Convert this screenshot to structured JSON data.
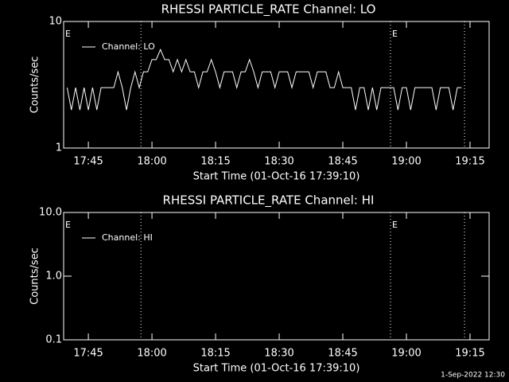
{
  "chart_data": [
    {
      "type": "line",
      "title": "RHESSI PARTICLE_RATE Channel: LO",
      "x_label": "Start Time (01-Oct-16 17:39:10)",
      "y_label": "Counts/sec",
      "log_y": true,
      "ylim": [
        1,
        10
      ],
      "yticks": [
        1,
        10
      ],
      "xlim": [
        39.17,
        139.5
      ],
      "xticks": [
        {
          "value": 45,
          "label": "17:45"
        },
        {
          "value": 60,
          "label": "18:00"
        },
        {
          "value": 75,
          "label": "18:15"
        },
        {
          "value": 90,
          "label": "18:30"
        },
        {
          "value": 105,
          "label": "18:45"
        },
        {
          "value": 120,
          "label": "19:00"
        },
        {
          "value": 135,
          "label": "19:15"
        }
      ],
      "vlines": [
        57.4,
        116.25,
        133.7
      ],
      "annotations": [
        {
          "text": "E",
          "x": 39.17
        },
        {
          "text": "E",
          "x": 116.25
        }
      ],
      "legend": "upper left",
      "series": [
        {
          "name": "Channel: LO",
          "color": "#ffffff",
          "x": [
            40,
            41,
            42,
            43,
            44,
            45,
            46,
            47,
            48,
            49,
            50,
            51,
            52,
            53,
            54,
            55,
            56,
            57,
            58,
            59,
            60,
            61,
            62,
            63,
            64,
            65,
            66,
            67,
            68,
            69,
            70,
            71,
            72,
            73,
            74,
            75,
            76,
            77,
            78,
            79,
            80,
            81,
            82,
            83,
            84,
            85,
            86,
            87,
            88,
            89,
            90,
            91,
            92,
            93,
            94,
            95,
            96,
            97,
            98,
            99,
            100,
            101,
            102,
            103,
            104,
            105,
            106,
            107,
            108,
            109,
            110,
            111,
            112,
            113,
            114,
            115,
            116,
            117,
            118,
            119,
            120,
            121,
            122,
            123,
            124,
            125,
            126,
            127,
            128,
            129,
            130,
            131,
            132,
            133
          ],
          "values": [
            3,
            2,
            3,
            2,
            3,
            2,
            3,
            2,
            3,
            3,
            3,
            3,
            4,
            3,
            2,
            3,
            4,
            3,
            4,
            4,
            5,
            5,
            6,
            5,
            5,
            4,
            5,
            4,
            5,
            4,
            4,
            3,
            4,
            4,
            5,
            4,
            3,
            4,
            4,
            4,
            3,
            4,
            4,
            5,
            4,
            3,
            4,
            4,
            4,
            3,
            4,
            4,
            4,
            3,
            4,
            4,
            4,
            4,
            3,
            4,
            4,
            4,
            3,
            3,
            4,
            3,
            3,
            3,
            2,
            3,
            3,
            2,
            3,
            2,
            3,
            3,
            3,
            3,
            2,
            3,
            3,
            2,
            3,
            3,
            3,
            3,
            3,
            2,
            3,
            3,
            3,
            2,
            3,
            3
          ]
        }
      ]
    },
    {
      "type": "line",
      "title": "RHESSI PARTICLE_RATE Channel: HI",
      "x_label": "Start Time (01-Oct-16 17:39:10)",
      "y_label": "Counts/sec",
      "log_y": true,
      "ylim": [
        0.1,
        10
      ],
      "yticks": [
        0.1,
        {
          "value": 1,
          "label": "1.0"
        },
        {
          "value": 10,
          "label": "10.0"
        }
      ],
      "xlim": [
        39.17,
        139.5
      ],
      "xticks": [
        {
          "value": 45,
          "label": "17:45"
        },
        {
          "value": 60,
          "label": "18:00"
        },
        {
          "value": 75,
          "label": "18:15"
        },
        {
          "value": 90,
          "label": "18:30"
        },
        {
          "value": 105,
          "label": "18:45"
        },
        {
          "value": 120,
          "label": "19:00"
        },
        {
          "value": 135,
          "label": "19:15"
        }
      ],
      "vlines": [
        57.4,
        116.25,
        133.7
      ],
      "annotations": [
        {
          "text": "E",
          "x": 39.17
        },
        {
          "text": "E",
          "x": 116.25
        }
      ],
      "legend": "upper left",
      "series": [
        {
          "name": "Channel: HI",
          "color": "#ffffff",
          "x": [],
          "values": []
        }
      ]
    }
  ],
  "footer": "1-Sep-2022 12:30"
}
